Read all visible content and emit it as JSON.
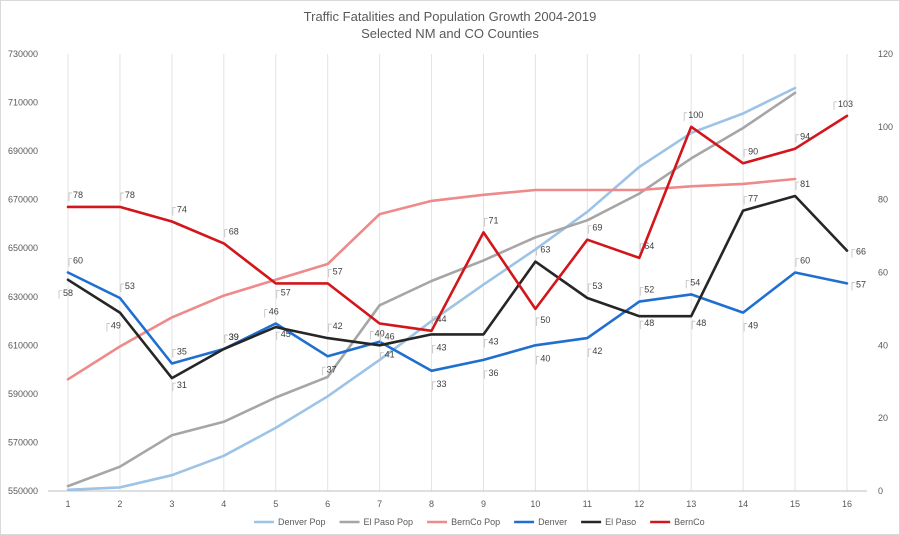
{
  "chart_data": {
    "type": "line",
    "title": "Traffic Fatalities and Population Growth 2004-2019",
    "subtitle": "Selected NM and CO Counties",
    "categories": [
      "1",
      "2",
      "3",
      "4",
      "5",
      "6",
      "7",
      "8",
      "9",
      "10",
      "11",
      "12",
      "13",
      "14",
      "15",
      "16"
    ],
    "y_left": {
      "ylim": [
        550000,
        730000
      ],
      "ticks": [
        "550000",
        "570000",
        "590000",
        "610000",
        "630000",
        "650000",
        "670000",
        "690000",
        "710000",
        "730000"
      ]
    },
    "y_right": {
      "ylim": [
        0,
        120
      ],
      "ticks": [
        "0",
        "20",
        "40",
        "60",
        "80",
        "100",
        "120"
      ]
    },
    "series": [
      {
        "name": "Denver Pop",
        "axis": "left",
        "color": "#9dc3e6",
        "labeled": false,
        "values": [
          550500,
          551500,
          556500,
          564500,
          576000,
          589000,
          604000,
          620000,
          635000,
          649500,
          665000,
          683500,
          697500,
          705500,
          716000,
          null
        ]
      },
      {
        "name": "El Paso Pop",
        "axis": "left",
        "color": "#a6a6a6",
        "labeled": false,
        "values": [
          552000,
          560000,
          573000,
          578500,
          588500,
          597000,
          626500,
          636500,
          645000,
          654500,
          661500,
          672500,
          687000,
          699500,
          714000,
          null
        ]
      },
      {
        "name": "BernCo Pop",
        "axis": "left",
        "color": "#ee8a8a",
        "labeled": false,
        "values": [
          596000,
          609500,
          621500,
          630500,
          637000,
          643500,
          664000,
          669500,
          672000,
          674000,
          674000,
          674000,
          675500,
          676500,
          678500,
          null
        ]
      },
      {
        "name": "Denver",
        "axis": "right",
        "color": "#1f6fd1",
        "labeled": true,
        "values": [
          60,
          53,
          35,
          39,
          46,
          37,
          41,
          33,
          36,
          40,
          42,
          52,
          54,
          49,
          60,
          57
        ],
        "labels": [
          "60",
          "53",
          "35",
          "39",
          "46",
          "37",
          "41",
          "33",
          "36",
          "40",
          "42",
          "52",
          "54",
          "49",
          "60",
          "57"
        ]
      },
      {
        "name": "El Paso",
        "axis": "right",
        "color": "#262626",
        "labeled": true,
        "values": [
          58,
          49,
          31,
          39,
          45,
          42,
          40,
          43,
          43,
          63,
          53,
          48,
          48,
          77,
          81,
          66
        ],
        "labels": [
          "58",
          "49",
          "31",
          "39",
          "45",
          "42",
          "40",
          "43",
          "43",
          "63",
          "53",
          "48",
          "48",
          "77",
          "81",
          "66"
        ]
      },
      {
        "name": "BernCo",
        "axis": "right",
        "color": "#d2161b",
        "labeled": true,
        "values": [
          78,
          78,
          74,
          68,
          57,
          57,
          46,
          44,
          71,
          50,
          69,
          64,
          100,
          90,
          94,
          103
        ],
        "labels": [
          "78",
          "78",
          "74",
          "68",
          "57",
          "57",
          "46",
          "44",
          "71",
          "50",
          "69",
          "64",
          "100",
          "90",
          "94",
          "103"
        ]
      }
    ],
    "grid": "vertical",
    "legend": "bottom"
  }
}
